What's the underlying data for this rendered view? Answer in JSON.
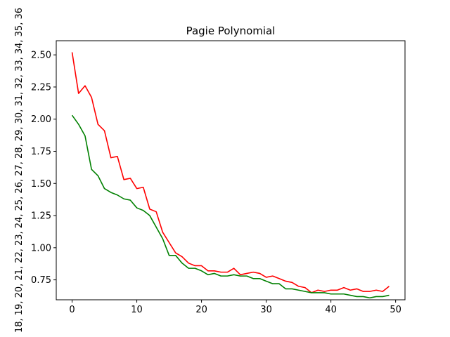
{
  "chart_data": {
    "type": "line",
    "title": "Pagie Polynomial",
    "ylabel": "18, 19, 20, 21, 22, 23, 24, 25, 26, 27, 28, 29, 30, 31, 32, 33, 34, 35, 36",
    "xlabel": "",
    "xlim": [
      -2.45,
      51.45
    ],
    "ylim": [
      0.595,
      2.61
    ],
    "xticks": [
      0,
      10,
      20,
      30,
      40,
      50
    ],
    "yticks": [
      0.75,
      1.0,
      1.25,
      1.5,
      1.75,
      2.0,
      2.25,
      2.5
    ],
    "grid": false,
    "x": [
      0,
      1,
      2,
      3,
      4,
      5,
      6,
      7,
      8,
      9,
      10,
      11,
      12,
      13,
      14,
      15,
      16,
      17,
      18,
      19,
      20,
      21,
      22,
      23,
      24,
      25,
      26,
      27,
      28,
      29,
      30,
      31,
      32,
      33,
      34,
      35,
      36,
      37,
      38,
      39,
      40,
      41,
      42,
      43,
      44,
      45,
      46,
      47,
      48,
      49
    ],
    "series": [
      {
        "color": "#ff0000",
        "values": [
          2.52,
          2.2,
          2.26,
          2.17,
          1.96,
          1.91,
          1.7,
          1.71,
          1.53,
          1.54,
          1.46,
          1.47,
          1.3,
          1.28,
          1.12,
          1.04,
          0.96,
          0.93,
          0.88,
          0.86,
          0.86,
          0.82,
          0.82,
          0.81,
          0.81,
          0.84,
          0.79,
          0.8,
          0.81,
          0.8,
          0.77,
          0.78,
          0.76,
          0.74,
          0.73,
          0.7,
          0.69,
          0.65,
          0.67,
          0.66,
          0.67,
          0.67,
          0.69,
          0.67,
          0.68,
          0.66,
          0.66,
          0.67,
          0.66,
          0.7
        ]
      },
      {
        "color": "#008000",
        "values": [
          2.03,
          1.96,
          1.87,
          1.61,
          1.56,
          1.46,
          1.43,
          1.41,
          1.38,
          1.37,
          1.31,
          1.29,
          1.25,
          1.16,
          1.07,
          0.94,
          0.94,
          0.88,
          0.84,
          0.84,
          0.82,
          0.79,
          0.8,
          0.78,
          0.78,
          0.79,
          0.78,
          0.78,
          0.76,
          0.76,
          0.74,
          0.72,
          0.72,
          0.68,
          0.68,
          0.67,
          0.66,
          0.65,
          0.65,
          0.65,
          0.64,
          0.64,
          0.64,
          0.63,
          0.62,
          0.62,
          0.61,
          0.62,
          0.62,
          0.63
        ]
      }
    ]
  }
}
